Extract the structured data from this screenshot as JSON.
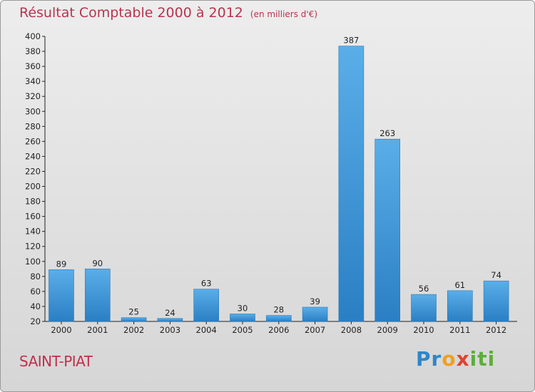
{
  "header": {
    "title": "Résultat Comptable 2000 à 2012",
    "subtitle": "(en milliers d'€)"
  },
  "commune": "SAINT-PIAT",
  "logo": {
    "text": "Proxiti"
  },
  "colors": {
    "title": "#b8344e",
    "bar_light": "#5aaee8",
    "bar_dark": "#2a7fc4"
  },
  "chart_data": {
    "type": "bar",
    "title": "Résultat Comptable 2000 à 2012",
    "subtitle": "(en milliers d'€)",
    "categories": [
      "2000",
      "2001",
      "2002",
      "2003",
      "2004",
      "2005",
      "2006",
      "2007",
      "2008",
      "2009",
      "2010",
      "2011",
      "2012"
    ],
    "values": [
      89,
      90,
      25,
      24,
      63,
      30,
      28,
      39,
      387,
      263,
      56,
      61,
      74
    ],
    "ylim": [
      20,
      400
    ],
    "yticks": [
      20,
      40,
      60,
      80,
      100,
      120,
      140,
      160,
      180,
      200,
      220,
      240,
      260,
      280,
      300,
      320,
      340,
      360,
      380,
      400
    ],
    "grid": false
  }
}
